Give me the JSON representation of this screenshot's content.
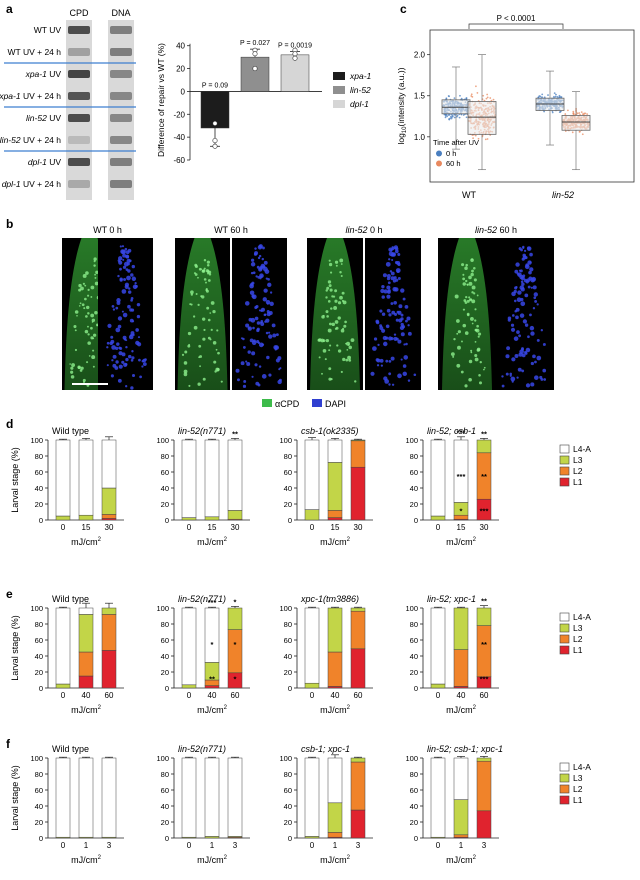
{
  "panels": {
    "a": {
      "letter": "a",
      "blot_headers": [
        "CPD",
        "DNA"
      ],
      "lane_labels": [
        {
          "pre": "WT UV",
          "gene": "",
          "post": ""
        },
        {
          "pre": "WT UV + 24 h",
          "gene": "",
          "post": ""
        },
        {
          "pre": "",
          "gene": "xpa-1",
          "post": " UV"
        },
        {
          "pre": "",
          "gene": "xpa-1",
          "post": " UV + 24 h"
        },
        {
          "pre": "",
          "gene": "lin-52",
          "post": " UV"
        },
        {
          "pre": "",
          "gene": "lin-52",
          "post": " UV + 24 h"
        },
        {
          "pre": "",
          "gene": "dpl-1",
          "post": " UV"
        },
        {
          "pre": "",
          "gene": "dpl-1",
          "post": " UV + 24 h"
        }
      ],
      "cpd_intensity": [
        0.85,
        0.35,
        0.9,
        0.8,
        0.85,
        0.2,
        0.85,
        0.3
      ],
      "dna_intensity": [
        0.55,
        0.55,
        0.5,
        0.5,
        0.5,
        0.5,
        0.55,
        0.55
      ],
      "chart_data": {
        "type": "bar",
        "categories": [
          "xpa-1",
          "lin-52",
          "dpl-1"
        ],
        "values": [
          -32,
          30,
          32
        ],
        "errors": [
          16,
          7,
          3
        ],
        "points": [
          [
            -28,
            -43,
            -48
          ],
          [
            36,
            33,
            20
          ],
          [
            36,
            33,
            29
          ]
        ],
        "p_values": [
          "P = 0.09",
          "P = 0.027",
          "P = 0.0019"
        ],
        "ylabel": "Difference of repair vs WT (%)",
        "yticks": [
          40,
          20,
          0,
          -20,
          -40,
          -60
        ],
        "ylim": [
          -60,
          45
        ],
        "legend": [
          "xpa-1",
          "lin-52",
          "dpl-1"
        ],
        "colors": [
          "#1c1c1c",
          "#8f8f8f",
          "#d6d6d6"
        ]
      }
    },
    "c": {
      "letter": "c",
      "chart_data": {
        "type": "box",
        "groups": [
          "WT",
          "lin-52"
        ],
        "series": [
          {
            "name": "0 h",
            "color": "#4a7fc0",
            "stats": [
              [
                0.85,
                1.28,
                1.36,
                1.45,
                1.85
              ],
              [
                0.9,
                1.32,
                1.4,
                1.47,
                1.8
              ]
            ]
          },
          {
            "name": "60 h",
            "color": "#e8895f",
            "stats": [
              [
                0.6,
                1.03,
                1.24,
                1.43,
                2.0
              ],
              [
                0.6,
                1.08,
                1.18,
                1.26,
                1.55
              ]
            ]
          }
        ],
        "ylabel_pre": "log",
        "ylabel_sub": "10",
        "ylabel_post": "(intensity (a.u.))",
        "yticks": [
          1.0,
          1.5,
          2.0
        ],
        "yticklabels": [
          "1.0",
          "1.5",
          "2.0"
        ],
        "ylim": [
          0.45,
          2.3
        ],
        "p_value": "P < 0.0001",
        "legend_title": "Time after UV",
        "legend_entries": [
          "0 h",
          "60 h"
        ]
      }
    },
    "b": {
      "letter": "b",
      "images": [
        {
          "pre": "WT 0 h",
          "gene": "",
          "post": ""
        },
        {
          "pre": "WT 60 h",
          "gene": "",
          "post": ""
        },
        {
          "pre": "",
          "gene": "lin-52",
          "post": " 0 h"
        },
        {
          "pre": "",
          "gene": "lin-52",
          "post": " 60 h"
        }
      ],
      "legend": [
        {
          "label": "αCPD",
          "color": "#3dbb4a"
        },
        {
          "label": "DAPI",
          "color": "#2f3fd0"
        }
      ]
    },
    "larval": [
      {
        "letter": "d",
        "ylabel": "Larval stage (%)",
        "xunit_base": "mJ/cm",
        "xunit_sup": "2",
        "yticks": [
          "0",
          "20",
          "40",
          "60",
          "80",
          "100"
        ],
        "legend": [
          "L4-A",
          "L3",
          "L2",
          "L1"
        ],
        "chart_data": {
          "type": "stacked-bar",
          "stack_order": [
            "L1",
            "L2",
            "L3",
            "L4-A"
          ],
          "colors": {
            "L1": "#e0232e",
            "L2": "#f0832a",
            "L3": "#c2d548",
            "L4-A": "#ffffff"
          },
          "groups": [
            {
              "title": "Wild type",
              "title_style": "plain",
              "doses": [
                "0",
                "15",
                "30"
              ],
              "bars": [
                [
                  0,
                  0,
                  5,
                  95
                ],
                [
                  0,
                  0,
                  6,
                  94
                ],
                [
                  2,
                  5,
                  33,
                  60
                ]
              ],
              "err": [
                1,
                2,
                4
              ],
              "stars": [
                [],
                [],
                []
              ]
            },
            {
              "title": "lin-52(n771)",
              "title_style": "italic",
              "doses": [
                "0",
                "15",
                "30"
              ],
              "bars": [
                [
                  0,
                  0,
                  3,
                  97
                ],
                [
                  0,
                  0,
                  4,
                  96
                ],
                [
                  0,
                  1,
                  11,
                  88
                ]
              ],
              "err": [
                1,
                1,
                2
              ],
              "stars": [
                [],
                [],
                [
                  "**"
                ]
              ]
            },
            {
              "title": "csb-1(ok2335)",
              "title_style": "italic",
              "doses": [
                "0",
                "15",
                "30"
              ],
              "bars": [
                [
                  0,
                  0,
                  13,
                  87
                ],
                [
                  3,
                  9,
                  60,
                  28
                ],
                [
                  66,
                  33,
                  1,
                  0
                ]
              ],
              "err": [
                3,
                2,
                1
              ],
              "stars": [
                [],
                [],
                []
              ]
            },
            {
              "title": "lin-52; csb-1",
              "title_style": "italic",
              "doses": [
                "0",
                "15",
                "30"
              ],
              "bars": [
                [
                  0,
                  0,
                  5,
                  95
                ],
                [
                  1,
                  5,
                  16,
                  78
                ],
                [
                  26,
                  58,
                  16,
                  0
                ]
              ],
              "err": [
                1,
                4,
                2
              ],
              "stars": [
                [],
                [
                  "***",
                  "***",
                  "*"
                ],
                [
                  "**",
                  "**",
                  "***"
                ]
              ]
            }
          ]
        }
      },
      {
        "letter": "e",
        "ylabel": "Larval stage (%)",
        "xunit_base": "mJ/cm",
        "xunit_sup": "2",
        "yticks": [
          "0",
          "20",
          "40",
          "60",
          "80",
          "100"
        ],
        "legend": [
          "L4-A",
          "L3",
          "L2",
          "L1"
        ],
        "chart_data": {
          "type": "stacked-bar",
          "stack_order": [
            "L1",
            "L2",
            "L3",
            "L4-A"
          ],
          "colors": {
            "L1": "#e0232e",
            "L2": "#f0832a",
            "L3": "#c2d548",
            "L4-A": "#ffffff"
          },
          "groups": [
            {
              "title": "Wild type",
              "title_style": "plain",
              "doses": [
                "0",
                "40",
                "60"
              ],
              "bars": [
                [
                  0,
                  0,
                  5,
                  95
                ],
                [
                  15,
                  30,
                  47,
                  8
                ],
                [
                  47,
                  45,
                  8,
                  0
                ]
              ],
              "err": [
                1,
                8,
                7
              ],
              "stars": [
                [],
                [],
                []
              ]
            },
            {
              "title": "lin-52(n771)",
              "title_style": "italic",
              "doses": [
                "0",
                "40",
                "60"
              ],
              "bars": [
                [
                  0,
                  0,
                  4,
                  96
                ],
                [
                  3,
                  7,
                  22,
                  68
                ],
                [
                  19,
                  54,
                  27,
                  0
                ]
              ],
              "err": [
                1,
                1,
                2
              ],
              "stars": [
                [],
                [
                  "***",
                  "*",
                  "**"
                ],
                [
                  "*",
                  "*",
                  "*"
                ]
              ]
            },
            {
              "title": "xpc-1(tm3886)",
              "title_style": "italic",
              "doses": [
                "0",
                "40",
                "60"
              ],
              "bars": [
                [
                  0,
                  0,
                  6,
                  94
                ],
                [
                  2,
                  43,
                  55,
                  0
                ],
                [
                  49,
                  47,
                  4,
                  0
                ]
              ],
              "err": [
                1,
                1,
                1
              ],
              "stars": [
                [],
                [],
                []
              ]
            },
            {
              "title": "lin-52; xpc-1",
              "title_style": "italic",
              "doses": [
                "0",
                "40",
                "60"
              ],
              "bars": [
                [
                  0,
                  0,
                  5,
                  95
                ],
                [
                  2,
                  46,
                  52,
                  0
                ],
                [
                  14,
                  64,
                  22,
                  0
                ]
              ],
              "err": [
                1,
                1,
                3
              ],
              "stars": [
                [],
                [],
                [
                  "**",
                  "**",
                  "***"
                ]
              ]
            }
          ]
        }
      },
      {
        "letter": "f",
        "ylabel": "Larval stage (%)",
        "xunit_base": "mJ/cm",
        "xunit_sup": "2",
        "yticks": [
          "0",
          "20",
          "40",
          "60",
          "80",
          "100"
        ],
        "legend": [
          "L4-A",
          "L3",
          "L2",
          "L1"
        ],
        "chart_data": {
          "type": "stacked-bar",
          "stack_order": [
            "L1",
            "L2",
            "L3",
            "L4-A"
          ],
          "colors": {
            "L1": "#e0232e",
            "L2": "#f0832a",
            "L3": "#c2d548",
            "L4-A": "#ffffff"
          },
          "groups": [
            {
              "title": "Wild type",
              "title_style": "plain",
              "doses": [
                "0",
                "1",
                "3"
              ],
              "bars": [
                [
                  0,
                  0,
                  1,
                  99
                ],
                [
                  0,
                  0,
                  1,
                  99
                ],
                [
                  0,
                  0,
                  1,
                  99
                ]
              ],
              "err": [
                1,
                1,
                1
              ],
              "stars": [
                [],
                [],
                []
              ]
            },
            {
              "title": "lin-52(n771)",
              "title_style": "italic",
              "doses": [
                "0",
                "1",
                "3"
              ],
              "bars": [
                [
                  0,
                  0,
                  1,
                  99
                ],
                [
                  0,
                  0,
                  2,
                  98
                ],
                [
                  0,
                  1,
                  1,
                  98
                ]
              ],
              "err": [
                1,
                1,
                1
              ],
              "stars": [
                [],
                [],
                []
              ]
            },
            {
              "title": "csb-1; xpc-1",
              "title_style": "italic",
              "doses": [
                "0",
                "1",
                "3"
              ],
              "bars": [
                [
                  0,
                  0,
                  2,
                  98
                ],
                [
                  1,
                  6,
                  37,
                  56
                ],
                [
                  35,
                  60,
                  5,
                  0
                ]
              ],
              "err": [
                1,
                4,
                1
              ],
              "stars": [
                [],
                [],
                []
              ]
            },
            {
              "title": "lin-52; csb-1; xpc-1",
              "title_style": "italic",
              "doses": [
                "0",
                "1",
                "3"
              ],
              "bars": [
                [
                  0,
                  0,
                  1,
                  99
                ],
                [
                  1,
                  3,
                  44,
                  52
                ],
                [
                  34,
                  62,
                  4,
                  0
                ]
              ],
              "err": [
                1,
                2,
                2
              ],
              "stars": [
                [],
                [],
                []
              ]
            }
          ]
        }
      }
    ]
  }
}
